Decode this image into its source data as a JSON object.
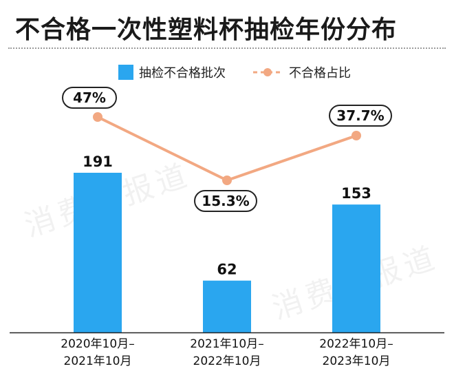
{
  "header": {
    "title": "不合格一次性塑料杯抽检年份分布",
    "watermark": "消费者报道"
  },
  "colors": {
    "bar": "#2aa6ef",
    "line": "#f2a882",
    "text": "#111111"
  },
  "chart_data": {
    "type": "bar",
    "title": "不合格一次性塑料杯抽检年份分布",
    "categories": [
      [
        "2020年10月–",
        "2021年10月"
      ],
      [
        "2021年10月–",
        "2022年10月"
      ],
      [
        "2022年10月–",
        "2023年10月"
      ]
    ],
    "series": [
      {
        "name": "抽检不合格批次",
        "type": "bar",
        "values": [
          191,
          62,
          153
        ],
        "labels": [
          "191",
          "62",
          "153"
        ]
      },
      {
        "name": "不合格占比",
        "type": "line",
        "values": [
          47,
          15.3,
          37.7
        ],
        "labels": [
          "47%",
          "15.3%",
          "37.7%"
        ],
        "unit": "%"
      }
    ],
    "legend_position": "top-center",
    "grid": false
  }
}
